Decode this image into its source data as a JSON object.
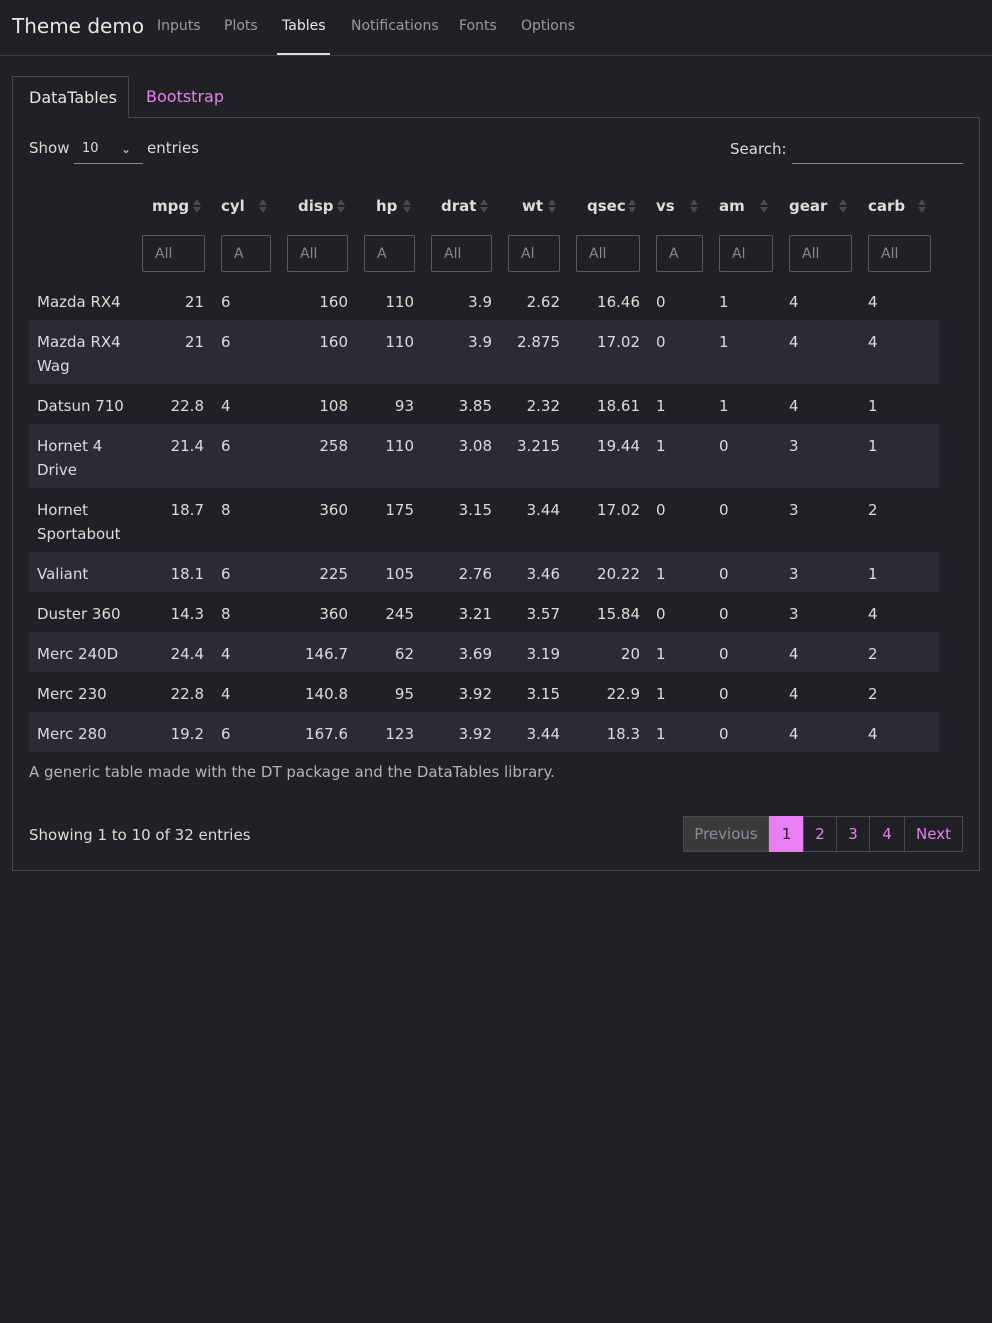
{
  "nav": {
    "brand": "Theme demo",
    "links": [
      "Inputs",
      "Plots",
      "Tables",
      "Notifications",
      "Fonts",
      "Options"
    ]
  },
  "tabs": [
    "DataTables",
    "Bootstrap"
  ],
  "controls": {
    "show_label": "Show",
    "length_value": "10",
    "entries_label": "entries",
    "search_label": "Search:"
  },
  "columns": [
    "mpg",
    "cyl",
    "disp",
    "hp",
    "drat",
    "wt",
    "qsec",
    "vs",
    "am",
    "gear",
    "carb"
  ],
  "filter_placeholders": [
    "All",
    "A",
    "All",
    "A",
    "All",
    "Al",
    "All",
    "A",
    "Al",
    "All",
    "All"
  ],
  "rows": [
    {
      "name": "Mazda RX4",
      "mpg": "21",
      "cyl": "6",
      "disp": "160",
      "hp": "110",
      "drat": "3.9",
      "wt": "2.62",
      "qsec": "16.46",
      "vs": "0",
      "am": "1",
      "gear": "4",
      "carb": "4"
    },
    {
      "name": "Mazda RX4 Wag",
      "mpg": "21",
      "cyl": "6",
      "disp": "160",
      "hp": "110",
      "drat": "3.9",
      "wt": "2.875",
      "qsec": "17.02",
      "vs": "0",
      "am": "1",
      "gear": "4",
      "carb": "4"
    },
    {
      "name": "Datsun 710",
      "mpg": "22.8",
      "cyl": "4",
      "disp": "108",
      "hp": "93",
      "drat": "3.85",
      "wt": "2.32",
      "qsec": "18.61",
      "vs": "1",
      "am": "1",
      "gear": "4",
      "carb": "1"
    },
    {
      "name": "Hornet 4 Drive",
      "mpg": "21.4",
      "cyl": "6",
      "disp": "258",
      "hp": "110",
      "drat": "3.08",
      "wt": "3.215",
      "qsec": "19.44",
      "vs": "1",
      "am": "0",
      "gear": "3",
      "carb": "1"
    },
    {
      "name": "Hornet Sportabout",
      "mpg": "18.7",
      "cyl": "8",
      "disp": "360",
      "hp": "175",
      "drat": "3.15",
      "wt": "3.44",
      "qsec": "17.02",
      "vs": "0",
      "am": "0",
      "gear": "3",
      "carb": "2"
    },
    {
      "name": "Valiant",
      "mpg": "18.1",
      "cyl": "6",
      "disp": "225",
      "hp": "105",
      "drat": "2.76",
      "wt": "3.46",
      "qsec": "20.22",
      "vs": "1",
      "am": "0",
      "gear": "3",
      "carb": "1"
    },
    {
      "name": "Duster 360",
      "mpg": "14.3",
      "cyl": "8",
      "disp": "360",
      "hp": "245",
      "drat": "3.21",
      "wt": "3.57",
      "qsec": "15.84",
      "vs": "0",
      "am": "0",
      "gear": "3",
      "carb": "4"
    },
    {
      "name": "Merc 240D",
      "mpg": "24.4",
      "cyl": "4",
      "disp": "146.7",
      "hp": "62",
      "drat": "3.69",
      "wt": "3.19",
      "qsec": "20",
      "vs": "1",
      "am": "0",
      "gear": "4",
      "carb": "2"
    },
    {
      "name": "Merc 230",
      "mpg": "22.8",
      "cyl": "4",
      "disp": "140.8",
      "hp": "95",
      "drat": "3.92",
      "wt": "3.15",
      "qsec": "22.9",
      "vs": "1",
      "am": "0",
      "gear": "4",
      "carb": "2"
    },
    {
      "name": "Merc 280",
      "mpg": "19.2",
      "cyl": "6",
      "disp": "167.6",
      "hp": "123",
      "drat": "3.92",
      "wt": "3.44",
      "qsec": "18.3",
      "vs": "1",
      "am": "0",
      "gear": "4",
      "carb": "4"
    }
  ],
  "caption": "A generic table made with the DT package and the DataTables library.",
  "info": "Showing 1 to 10 of 32 entries",
  "pagination": {
    "previous": "Previous",
    "pages": [
      "1",
      "2",
      "3",
      "4"
    ],
    "next": "Next"
  },
  "colors": {
    "accent": "#e97ff2",
    "background": "#202124",
    "stripe": "#2e2a35"
  }
}
